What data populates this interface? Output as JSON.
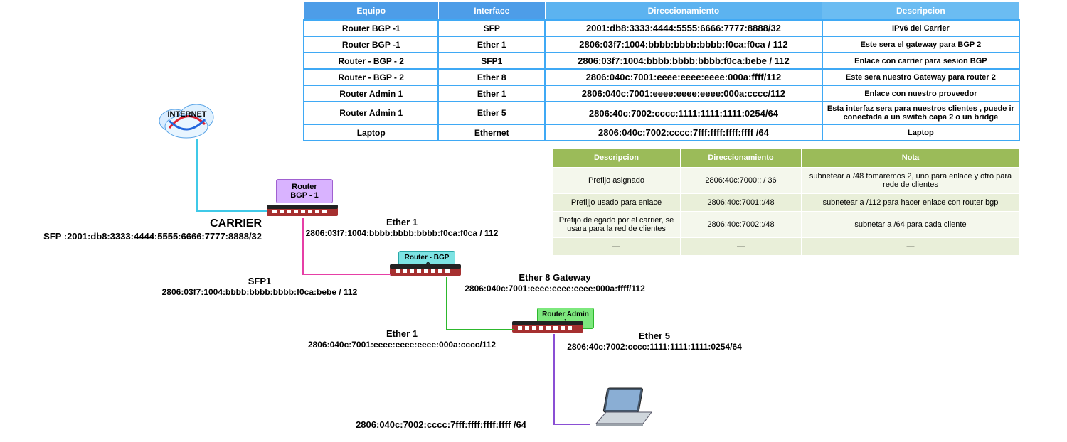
{
  "table1": {
    "headers": {
      "equipo": "Equipo",
      "interface": "Interface",
      "dir": "Direccionamiento",
      "desc": "Descripcion"
    },
    "rows": [
      {
        "equipo": "Router BGP -1",
        "iface": "SFP",
        "dir": "2001:db8:3333:4444:5555:6666:7777:8888/32",
        "desc": "IPv6 del Carrier"
      },
      {
        "equipo": "Router BGP -1",
        "iface": "Ether 1",
        "dir": "2806:03f7:1004:bbbb:bbbb:bbbb:f0ca:f0ca / 112",
        "desc": "Este sera el gateway para BGP 2"
      },
      {
        "equipo": "Router - BGP - 2",
        "iface": "SFP1",
        "dir": "2806:03f7:1004:bbbb:bbbb:bbbb:f0ca:bebe / 112",
        "desc": "Enlace con carrier para sesion BGP"
      },
      {
        "equipo": "Router - BGP - 2",
        "iface": "Ether 8",
        "dir": "2806:040c:7001:eeee:eeee:eeee:000a:ffff/112",
        "desc": "Este sera nuestro Gateway para router 2"
      },
      {
        "equipo": "Router Admin 1",
        "iface": "Ether 1",
        "dir": "2806:040c:7001:eeee:eeee:eeee:000a:cccc/112",
        "desc": "Enlace con nuestro proveedor"
      },
      {
        "equipo": "Router Admin 1",
        "iface": "Ether 5",
        "dir": "2806:40c:7002:cccc:1111:1111:1111:0254/64",
        "desc": "Esta interfaz sera para nuestros clientes , puede ir conectada a un switch capa 2 o un bridge"
      },
      {
        "equipo": "Laptop",
        "iface": "Ethernet",
        "dir": "2806:040c:7002:cccc:7fff:ffff:ffff:ffff /64",
        "desc": "Laptop"
      }
    ]
  },
  "table2": {
    "headers": {
      "desc": "Descripcion",
      "dir": "Direccionamiento",
      "nota": "Nota"
    },
    "rows": [
      {
        "desc": "Prefijo asignado",
        "dir": "2806:40c:7000:: / 36",
        "nota": "subnetear a /48  tomaremos 2, uno para enlace y otro para rede de clientes"
      },
      {
        "desc": "Prefijjo usado para enlace",
        "dir": "2806:40c:7001::/48",
        "nota": "subnetear a /112 para hacer enlace con router bgp"
      },
      {
        "desc": "Prefijo delegado por el carrier, se usara para la red de clientes",
        "dir": "2806:40c:7002::/48",
        "nota": "subnetar a /64 para cada cliente"
      },
      {
        "desc": "—",
        "dir": "—",
        "nota": "—"
      }
    ]
  },
  "labels": {
    "internet": "INTERNET",
    "carrier_title": "CARRIER",
    "carrier_sfp": "SFP :2001:db8:3333:4444:5555:6666:7777:8888/32",
    "bgp1": "Router BGP - 1",
    "bgp2": "Router - BGP -2",
    "admin1": "Router Admin 1",
    "e1_bgp1_t": "Ether 1",
    "e1_bgp1_a": "2806:03f7:1004:bbbb:bbbb:bbbb:f0ca:f0ca / 112",
    "sfp1_t": "SFP1",
    "sfp1_a": "2806:03f7:1004:bbbb:bbbb:bbbb:f0ca:bebe / 112",
    "e8_t": "Ether 8 Gateway",
    "e8_a": "2806:040c:7001:eeee:eeee:eeee:000a:ffff/112",
    "e1_adm_t": "Ether 1",
    "e1_adm_a": "2806:040c:7001:eeee:eeee:eeee:000a:cccc/112",
    "e5_t": "Ether 5",
    "e5_a": "2806:40c:7002:cccc:1111:1111:1111:0254/64",
    "laptop_a": "2806:040c:7002:cccc:7fff:ffff:ffff:ffff /64"
  },
  "colors": {
    "blue_header": "#4d9de8",
    "blue_border": "#3fa9f5",
    "green_header": "#9bbb59",
    "line_cyan": "#3fc9e8",
    "line_magenta": "#e63fa6",
    "line_green": "#2db82d",
    "line_violet": "#8a4fd4"
  }
}
